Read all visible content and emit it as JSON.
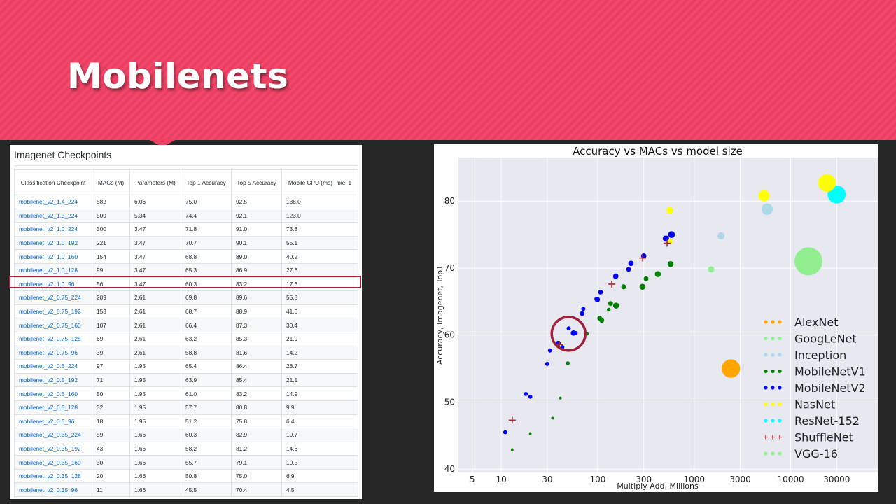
{
  "slide": {
    "title": "Mobilenets"
  },
  "table": {
    "heading": "Imagenet Checkpoints",
    "columns": [
      "Classification Checkpoint",
      "MACs (M)",
      "Parameters (M)",
      "Top 1 Accuracy",
      "Top 5 Accuracy",
      "Mobile CPU (ms) Pixel 1"
    ],
    "rows": [
      [
        "mobilenet_v2_1.4_224",
        "582",
        "6.06",
        "75.0",
        "92.5",
        "138.0"
      ],
      [
        "mobilenet_v2_1.3_224",
        "509",
        "5.34",
        "74.4",
        "92.1",
        "123.0"
      ],
      [
        "mobilenet_v2_1.0_224",
        "300",
        "3.47",
        "71.8",
        "91.0",
        "73.8"
      ],
      [
        "mobilenet_v2_1.0_192",
        "221",
        "3.47",
        "70.7",
        "90.1",
        "55.1"
      ],
      [
        "mobilenet_v2_1.0_160",
        "154",
        "3.47",
        "68.8",
        "89.0",
        "40.2"
      ],
      [
        "mobilenet_v2_1.0_128",
        "99",
        "3.47",
        "65.3",
        "86.9",
        "27.6"
      ],
      [
        "mobilenet_v2_1.0_96",
        "56",
        "3.47",
        "60.3",
        "83.2",
        "17.6"
      ],
      [
        "mobilenet_v2_0.75_224",
        "209",
        "2.61",
        "69.8",
        "89.6",
        "55.8"
      ],
      [
        "mobilenet_v2_0.75_192",
        "153",
        "2.61",
        "68.7",
        "88.9",
        "41.6"
      ],
      [
        "mobilenet_v2_0.75_160",
        "107",
        "2.61",
        "66.4",
        "87.3",
        "30.4"
      ],
      [
        "mobilenet_v2_0.75_128",
        "69",
        "2.61",
        "63.2",
        "85.3",
        "21.9"
      ],
      [
        "mobilenet_v2_0.75_96",
        "39",
        "2.61",
        "58.8",
        "81.6",
        "14.2"
      ],
      [
        "mobilenet_v2_0.5_224",
        "97",
        "1.95",
        "65.4",
        "86.4",
        "28.7"
      ],
      [
        "mobilenet_v2_0.5_192",
        "71",
        "1.95",
        "63.9",
        "85.4",
        "21.1"
      ],
      [
        "mobilenet_v2_0.5_160",
        "50",
        "1.95",
        "61.0",
        "83.2",
        "14.9"
      ],
      [
        "mobilenet_v2_0.5_128",
        "32",
        "1.95",
        "57.7",
        "80.8",
        "9.9"
      ],
      [
        "mobilenet_v2_0.5_96",
        "18",
        "1.95",
        "51.2",
        "75.8",
        "6.4"
      ],
      [
        "mobilenet_v2_0.35_224",
        "59",
        "1.66",
        "60.3",
        "82.9",
        "19.7"
      ],
      [
        "mobilenet_v2_0.35_192",
        "43",
        "1.66",
        "58.2",
        "81.2",
        "14.6"
      ],
      [
        "mobilenet_v2_0.35_160",
        "30",
        "1.66",
        "55.7",
        "79.1",
        "10.5"
      ],
      [
        "mobilenet_v2_0.35_128",
        "20",
        "1.66",
        "50.8",
        "75.0",
        "6.9"
      ],
      [
        "mobilenet_v2_0.35_96",
        "11",
        "1.66",
        "45.5",
        "70.4",
        "4.5"
      ]
    ],
    "highlighted_row": "mobilenet_v2_1.0_96",
    "link_color": "#0366d6",
    "highlight_color": "#a0203c"
  },
  "chart_data": {
    "type": "scatter",
    "title": "Accuracy vs MACs vs model size",
    "xlabel": "Multiply Add, Millions",
    "ylabel": "Accuracy, Imagenet, Top1",
    "x_scale": "log",
    "x_ticks": [
      5,
      10,
      30,
      100,
      300,
      1000,
      3000,
      10000,
      30000
    ],
    "x_tick_labels": [
      "5",
      "10",
      "30",
      "100",
      "300",
      "1000",
      "3000",
      "10000",
      "30000"
    ],
    "y_ticks": [
      40,
      50,
      60,
      70,
      80
    ],
    "xlim": [
      3.6,
      80000
    ],
    "ylim": [
      39.5,
      86.5
    ],
    "grid": true,
    "legend_position": "lower-right",
    "highlight_circle": {
      "x": 56,
      "y": 60.3,
      "color": "#a0203c"
    },
    "series": [
      {
        "name": "AlexNet",
        "color": "#ffa500",
        "marker": "circle",
        "points": [
          {
            "x": 2400,
            "y": 55,
            "size": 60
          }
        ]
      },
      {
        "name": "GoogLeNet",
        "color": "#90ee90",
        "marker": "circle",
        "points": [
          {
            "x": 1500,
            "y": 69.8,
            "size": 7
          }
        ]
      },
      {
        "name": "Inception",
        "color": "#add8e6",
        "marker": "circle",
        "points": [
          {
            "x": 1900,
            "y": 74.8,
            "size": 9
          },
          {
            "x": 5700,
            "y": 78.8,
            "size": 23
          }
        ]
      },
      {
        "name": "MobileNetV1",
        "color": "#008000",
        "marker": "circle",
        "points": [
          {
            "x": 13,
            "y": 42.9,
            "size": 1.3
          },
          {
            "x": 20,
            "y": 45.3,
            "size": 1.3
          },
          {
            "x": 34,
            "y": 47.6,
            "size": 1.3
          },
          {
            "x": 41,
            "y": 50.6,
            "size": 1.3
          },
          {
            "x": 49,
            "y": 55.8,
            "size": 2.6
          },
          {
            "x": 77,
            "y": 60.2,
            "size": 2.6
          },
          {
            "x": 110,
            "y": 62.2,
            "size": 4.2
          },
          {
            "x": 105,
            "y": 62.5,
            "size": 4.2
          },
          {
            "x": 130,
            "y": 63.8,
            "size": 2.6
          },
          {
            "x": 136,
            "y": 64.7,
            "size": 4.2
          },
          {
            "x": 155,
            "y": 64.4,
            "size": 6.3
          },
          {
            "x": 186,
            "y": 67.2,
            "size": 4.2
          },
          {
            "x": 291,
            "y": 67.2,
            "size": 6.3
          },
          {
            "x": 317,
            "y": 68.4,
            "size": 4.2
          },
          {
            "x": 420,
            "y": 69.1,
            "size": 6.3
          },
          {
            "x": 569,
            "y": 70.6,
            "size": 6.3
          }
        ]
      },
      {
        "name": "MobileNetV2",
        "color": "#0000ff",
        "marker": "circle",
        "points": [
          {
            "x": 582,
            "y": 75.0,
            "size": 8
          },
          {
            "x": 509,
            "y": 74.4,
            "size": 7
          },
          {
            "x": 300,
            "y": 71.8,
            "size": 5
          },
          {
            "x": 221,
            "y": 70.7,
            "size": 5
          },
          {
            "x": 154,
            "y": 68.8,
            "size": 5
          },
          {
            "x": 99,
            "y": 65.3,
            "size": 5
          },
          {
            "x": 56,
            "y": 60.3,
            "size": 5
          },
          {
            "x": 209,
            "y": 69.8,
            "size": 4
          },
          {
            "x": 153,
            "y": 68.7,
            "size": 4
          },
          {
            "x": 107,
            "y": 66.4,
            "size": 4
          },
          {
            "x": 69,
            "y": 63.2,
            "size": 4
          },
          {
            "x": 39,
            "y": 58.8,
            "size": 4
          },
          {
            "x": 97,
            "y": 65.4,
            "size": 3
          },
          {
            "x": 71,
            "y": 63.9,
            "size": 3
          },
          {
            "x": 50,
            "y": 61.0,
            "size": 3
          },
          {
            "x": 32,
            "y": 57.7,
            "size": 3
          },
          {
            "x": 18,
            "y": 51.2,
            "size": 3
          },
          {
            "x": 59,
            "y": 60.3,
            "size": 3
          },
          {
            "x": 43,
            "y": 58.2,
            "size": 3
          },
          {
            "x": 30,
            "y": 55.7,
            "size": 3
          },
          {
            "x": 20,
            "y": 50.8,
            "size": 3
          },
          {
            "x": 11,
            "y": 45.5,
            "size": 3
          }
        ]
      },
      {
        "name": "NasNet",
        "color": "#ffff00",
        "marker": "circle",
        "points": [
          {
            "x": 564,
            "y": 74.0,
            "size": 5
          },
          {
            "x": 560,
            "y": 78.6,
            "size": 8
          },
          {
            "x": 5300,
            "y": 80.8,
            "size": 22
          },
          {
            "x": 23800,
            "y": 82.7,
            "size": 55
          }
        ]
      },
      {
        "name": "ResNet-152",
        "color": "#00ffff",
        "marker": "circle",
        "points": [
          {
            "x": 30000,
            "y": 81.0,
            "size": 58
          }
        ]
      },
      {
        "name": "ShuffleNet",
        "color": "#a52a2a",
        "marker": "plus",
        "points": [
          {
            "x": 13,
            "y": 47.3,
            "size": 2
          },
          {
            "x": 40,
            "y": 58.6,
            "size": 2
          },
          {
            "x": 140,
            "y": 67.6,
            "size": 2
          },
          {
            "x": 292,
            "y": 71.5,
            "size": 2
          },
          {
            "x": 524,
            "y": 73.7,
            "size": 2
          }
        ]
      },
      {
        "name": "VGG-16",
        "color": "#90ee90",
        "marker": "circle",
        "points": [
          {
            "x": 15300,
            "y": 71.0,
            "size": 138
          }
        ]
      }
    ]
  }
}
